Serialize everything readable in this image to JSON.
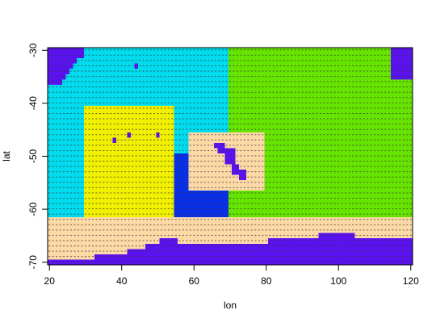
{
  "chart_data": {
    "type": "heatmap",
    "title": "",
    "xlabel": "lon",
    "ylabel": "lat",
    "xlim": [
      19.5,
      120.5
    ],
    "ylim": [
      -70.5,
      -29.5
    ],
    "x_ticks": [
      20,
      40,
      60,
      80,
      100,
      120
    ],
    "y_ticks": [
      -30,
      -40,
      -50,
      -60,
      -70
    ],
    "grid": false,
    "legend": "none",
    "colors": {
      "blue": "#5a12f0",
      "cyan": "#00dcee",
      "green": "#66e400",
      "yellow": "#f0f000",
      "darkblue": "#0830e8",
      "tan": "#fdd9a6",
      "dots": "#333333"
    },
    "regions": [
      {
        "name": "green",
        "color": "green",
        "polygon": [
          [
            69.5,
            -29.5
          ],
          [
            114.5,
            -29.5
          ],
          [
            114.5,
            -35.5
          ],
          [
            120.5,
            -35.5
          ],
          [
            120.5,
            -61.5
          ],
          [
            69.5,
            -61.5
          ]
        ]
      },
      {
        "name": "blue-top-right",
        "color": "blue",
        "polygon": [
          [
            114.5,
            -29.5
          ],
          [
            120.5,
            -29.5
          ],
          [
            120.5,
            -35.5
          ],
          [
            114.5,
            -35.5
          ]
        ]
      },
      {
        "name": "cyan",
        "color": "cyan",
        "polygon": [
          [
            19.5,
            -29.5
          ],
          [
            69.5,
            -29.5
          ],
          [
            69.5,
            -61.5
          ],
          [
            19.5,
            -61.5
          ]
        ]
      },
      {
        "name": "blue-top-left",
        "color": "blue",
        "polygon": [
          [
            19.5,
            -29.5
          ],
          [
            29.5,
            -29.5
          ],
          [
            29.5,
            -31.5
          ],
          [
            27.5,
            -31.5
          ],
          [
            27.5,
            -32.5
          ],
          [
            26.5,
            -32.5
          ],
          [
            26.5,
            -33.5
          ],
          [
            25.5,
            -33.5
          ],
          [
            25.5,
            -34.5
          ],
          [
            24.5,
            -34.5
          ],
          [
            24.5,
            -35.5
          ],
          [
            23.5,
            -35.5
          ],
          [
            23.5,
            -36.5
          ],
          [
            19.5,
            -36.5
          ]
        ]
      },
      {
        "name": "yellow",
        "color": "yellow",
        "polygon": [
          [
            29.5,
            -40.5
          ],
          [
            54.5,
            -40.5
          ],
          [
            54.5,
            -61.5
          ],
          [
            29.5,
            -61.5
          ]
        ]
      },
      {
        "name": "darkblue",
        "color": "darkblue",
        "polygon": [
          [
            54.5,
            -49.5
          ],
          [
            69.5,
            -49.5
          ],
          [
            69.5,
            -61.5
          ],
          [
            54.5,
            -61.5
          ]
        ]
      },
      {
        "name": "tan-box",
        "color": "tan",
        "polygon": [
          [
            58.5,
            -45.5
          ],
          [
            79.5,
            -45.5
          ],
          [
            79.5,
            -56.5
          ],
          [
            58.5,
            -56.5
          ]
        ]
      },
      {
        "name": "blue-in-box",
        "color": "blue",
        "polygon": [
          [
            65.5,
            -47.5
          ],
          [
            68.5,
            -47.5
          ],
          [
            68.5,
            -48.5
          ],
          [
            71.5,
            -48.5
          ],
          [
            71.5,
            -51.5
          ],
          [
            72.5,
            -51.5
          ],
          [
            72.5,
            -52.5
          ],
          [
            74.5,
            -52.5
          ],
          [
            74.5,
            -54.5
          ],
          [
            72.5,
            -54.5
          ],
          [
            72.5,
            -53.5
          ],
          [
            70.5,
            -53.5
          ],
          [
            70.5,
            -51.5
          ],
          [
            68.5,
            -51.5
          ],
          [
            68.5,
            -49.5
          ],
          [
            66.5,
            -49.5
          ],
          [
            66.5,
            -48.5
          ],
          [
            65.5,
            -48.5
          ]
        ]
      },
      {
        "name": "tan-band",
        "color": "tan",
        "polygon": [
          [
            19.5,
            -61.5
          ],
          [
            120.5,
            -61.5
          ],
          [
            120.5,
            -70.5
          ],
          [
            19.5,
            -70.5
          ]
        ]
      },
      {
        "name": "blue-bottom",
        "color": "blue",
        "polygon": [
          [
            19.5,
            -69.5
          ],
          [
            32.5,
            -69.5
          ],
          [
            32.5,
            -68.5
          ],
          [
            41.5,
            -68.5
          ],
          [
            41.5,
            -67.5
          ],
          [
            46.5,
            -67.5
          ],
          [
            46.5,
            -66.5
          ],
          [
            50.5,
            -66.5
          ],
          [
            50.5,
            -65.5
          ],
          [
            55.5,
            -65.5
          ],
          [
            55.5,
            -66.5
          ],
          [
            80.5,
            -66.5
          ],
          [
            80.5,
            -65.5
          ],
          [
            94.5,
            -65.5
          ],
          [
            94.5,
            -64.5
          ],
          [
            104.5,
            -64.5
          ],
          [
            104.5,
            -65.5
          ],
          [
            120.5,
            -65.5
          ],
          [
            120.5,
            -70.5
          ],
          [
            19.5,
            -70.5
          ]
        ]
      },
      {
        "name": "dot-1",
        "color": "blue",
        "polygon": [
          [
            43.5,
            -32.5
          ],
          [
            44.5,
            -32.5
          ],
          [
            44.5,
            -33.5
          ],
          [
            43.5,
            -33.5
          ]
        ]
      },
      {
        "name": "dot-2",
        "color": "blue",
        "polygon": [
          [
            41.5,
            -45.5
          ],
          [
            42.5,
            -45.5
          ],
          [
            42.5,
            -46.5
          ],
          [
            41.5,
            -46.5
          ]
        ]
      },
      {
        "name": "dot-3",
        "color": "blue",
        "polygon": [
          [
            49.5,
            -45.5
          ],
          [
            50.5,
            -45.5
          ],
          [
            50.5,
            -46.5
          ],
          [
            49.5,
            -46.5
          ]
        ]
      },
      {
        "name": "dot-4",
        "color": "blue",
        "polygon": [
          [
            37.5,
            -46.5
          ],
          [
            38.5,
            -46.5
          ],
          [
            38.5,
            -47.5
          ],
          [
            37.5,
            -47.5
          ]
        ]
      }
    ],
    "vector_field": {
      "shown": true,
      "lon_step": 1,
      "lat_step": 1,
      "lon_range": [
        20,
        120
      ],
      "lat_range": [
        -70,
        -30
      ]
    }
  }
}
